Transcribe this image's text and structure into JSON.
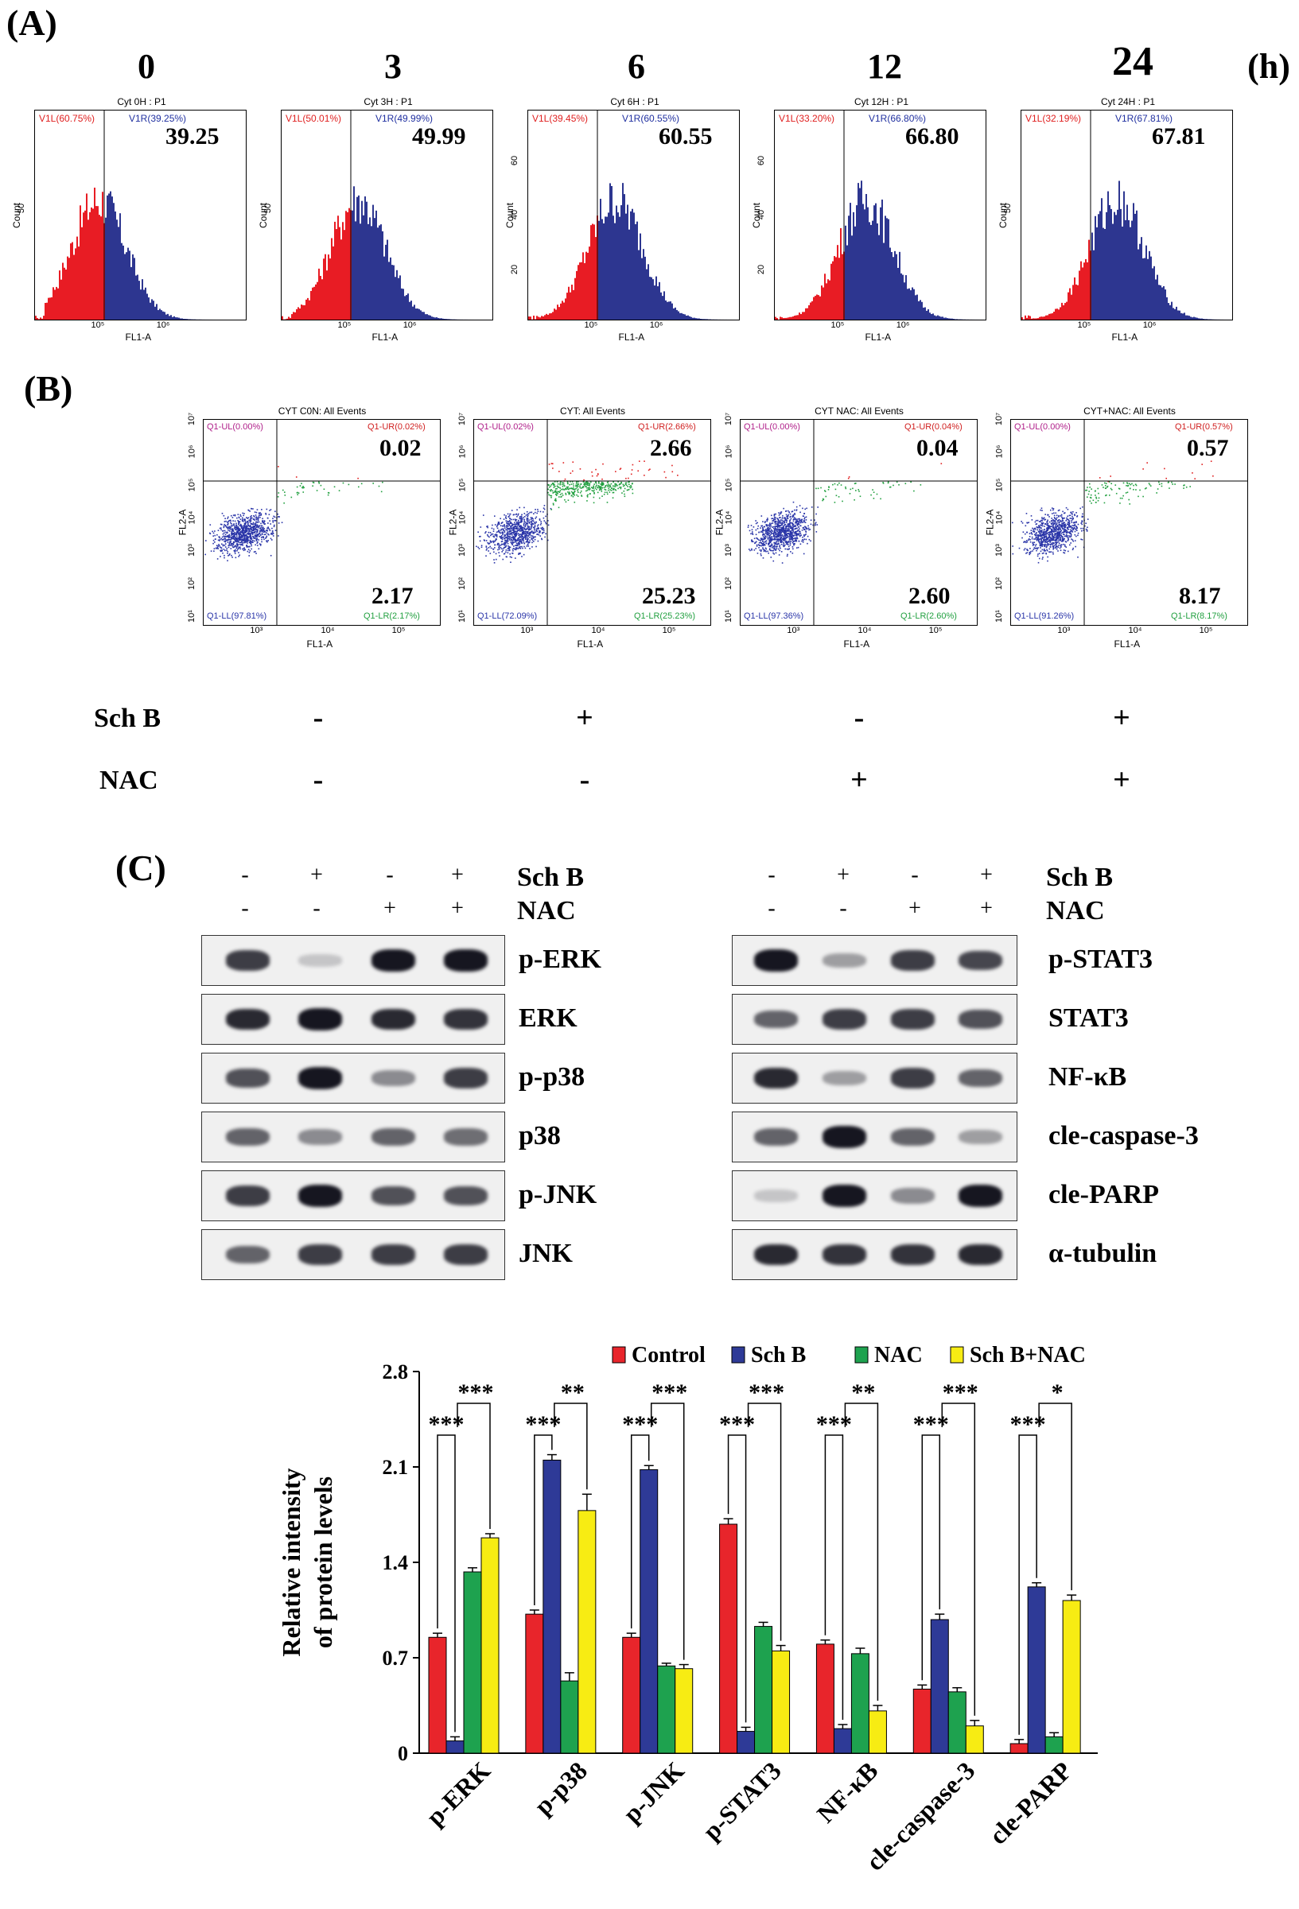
{
  "panel_a": {
    "letter": "(A)",
    "unit": "(h)",
    "hists": [
      {
        "time": "0",
        "title": "Cyt 0H : P1",
        "left_gate": "V1L(60.75%)",
        "right_gate": "V1R(39.25%)",
        "value": "39.25",
        "yticks": [
          "50"
        ],
        "xticks": [
          "10⁵",
          "10⁶"
        ]
      },
      {
        "time": "3",
        "title": "Cyt 3H : P1",
        "left_gate": "V1L(50.01%)",
        "right_gate": "V1R(49.99%)",
        "value": "49.99",
        "yticks": [
          "50"
        ],
        "xticks": [
          "10⁵",
          "10⁶"
        ]
      },
      {
        "time": "6",
        "title": "Cyt 6H : P1",
        "left_gate": "V1L(39.45%)",
        "right_gate": "V1R(60.55%)",
        "value": "60.55",
        "yticks": [
          "60",
          "40",
          "20"
        ],
        "xticks": [
          "10⁵",
          "10⁶"
        ]
      },
      {
        "time": "12",
        "title": "Cyt 12H : P1",
        "left_gate": "V1L(33.20%)",
        "right_gate": "V1R(66.80%)",
        "value": "66.80",
        "yticks": [
          "60",
          "40",
          "20"
        ],
        "xticks": [
          "10⁵",
          "10⁶"
        ]
      },
      {
        "time": "24",
        "title": "Cyt 24H : P1",
        "left_gate": "V1L(32.19%)",
        "right_gate": "V1R(67.81%)",
        "value": "67.81",
        "yticks": [
          "50"
        ],
        "xticks": [
          "10⁵",
          "10⁶"
        ]
      }
    ],
    "ylabel": "Count",
    "xlabel": "FL1-A"
  },
  "panel_b": {
    "letter": "(B)",
    "xlabel": "FL1-A",
    "ylabel": "FL2-A",
    "plots": [
      {
        "title": "CYT  C0N: All Events",
        "ul": "Q1-UL(0.00%)",
        "ur": "Q1-UR(0.02%)",
        "ll": "Q1-LL(97.81%)",
        "lr": "Q1-LR(2.17%)",
        "ur_val": "0.02",
        "lr_val": "2.17"
      },
      {
        "title": "CYT: All Events",
        "ul": "Q1-UL(0.02%)",
        "ur": "Q1-UR(2.66%)",
        "ll": "Q1-LL(72.09%)",
        "lr": "Q1-LR(25.23%)",
        "ur_val": "2.66",
        "lr_val": "25.23"
      },
      {
        "title": "CYT NAC: All Events",
        "ul": "Q1-UL(0.00%)",
        "ur": "Q1-UR(0.04%)",
        "ll": "Q1-LL(97.36%)",
        "lr": "Q1-LR(2.60%)",
        "ur_val": "0.04",
        "lr_val": "2.60"
      },
      {
        "title": "CYT+NAC: All Events",
        "ul": "Q1-UL(0.00%)",
        "ur": "Q1-UR(0.57%)",
        "ll": "Q1-LL(91.26%)",
        "lr": "Q1-LR(8.17%)",
        "ur_val": "0.57",
        "lr_val": "8.17"
      }
    ],
    "yticks": [
      "10⁷",
      "10⁶",
      "10⁵",
      "10⁴",
      "10³",
      "10²",
      "10¹"
    ],
    "xticks": [
      "10³",
      "10⁴",
      "10⁵"
    ],
    "treat_rows": [
      {
        "label": "Sch B",
        "signs": [
          "-",
          "+",
          "-",
          "+"
        ]
      },
      {
        "label": "NAC",
        "signs": [
          "-",
          "-",
          "+",
          "+"
        ]
      }
    ]
  },
  "panel_c": {
    "letter": "(C)",
    "header_rows": [
      {
        "label": "Sch B",
        "signs": [
          "-",
          "+",
          "-",
          "+"
        ]
      },
      {
        "label": "NAC",
        "signs": [
          "-",
          "-",
          "+",
          "+"
        ]
      }
    ],
    "left_blots": [
      "p-ERK",
      "ERK",
      "p-p38",
      "p38",
      "p-JNK",
      "JNK"
    ],
    "right_blots": [
      "p-STAT3",
      "STAT3",
      "NF-κB",
      "cle-caspase-3",
      "cle-PARP",
      "α-tubulin"
    ]
  },
  "chart_data": {
    "type": "bar",
    "categories": [
      "p-ERK",
      "p-p38",
      "p-JNK",
      "p-STAT3",
      "NF-κB",
      "cle-caspase-3",
      "cle-PARP"
    ],
    "series": [
      {
        "name": "Control",
        "color": "#e8252b",
        "values": [
          0.85,
          1.02,
          0.85,
          1.68,
          0.8,
          0.47,
          0.07
        ],
        "errors": [
          0.03,
          0.03,
          0.03,
          0.04,
          0.03,
          0.03,
          0.03
        ]
      },
      {
        "name": "Sch B",
        "color": "#2e3a97",
        "values": [
          0.09,
          2.15,
          2.08,
          0.16,
          0.18,
          0.98,
          1.22
        ],
        "errors": [
          0.03,
          0.04,
          0.03,
          0.03,
          0.03,
          0.04,
          0.03
        ]
      },
      {
        "name": "NAC",
        "color": "#1ea24f",
        "values": [
          1.33,
          0.53,
          0.64,
          0.93,
          0.73,
          0.45,
          0.12
        ],
        "errors": [
          0.03,
          0.06,
          0.02,
          0.03,
          0.04,
          0.03,
          0.03
        ]
      },
      {
        "name": "Sch B+NAC",
        "color": "#f7ec13",
        "values": [
          1.58,
          1.78,
          0.62,
          0.75,
          0.31,
          0.2,
          1.12
        ],
        "errors": [
          0.03,
          0.12,
          0.03,
          0.04,
          0.04,
          0.04,
          0.04
        ]
      }
    ],
    "ylabel_line1": "Relative intensity",
    "ylabel_line2": "of protein levels",
    "ylim": [
      0,
      2.8
    ],
    "yticks": [
      "0",
      "0.7",
      "1.4",
      "2.1",
      "2.8"
    ],
    "ytick_values": [
      0,
      0.7,
      1.4,
      2.1,
      2.8
    ],
    "sig_inner": [
      "***",
      "***",
      "***",
      "***",
      "***",
      "***",
      "***"
    ],
    "sig_outer": [
      "***",
      "**",
      "***",
      "***",
      "**",
      "***",
      "*"
    ]
  }
}
